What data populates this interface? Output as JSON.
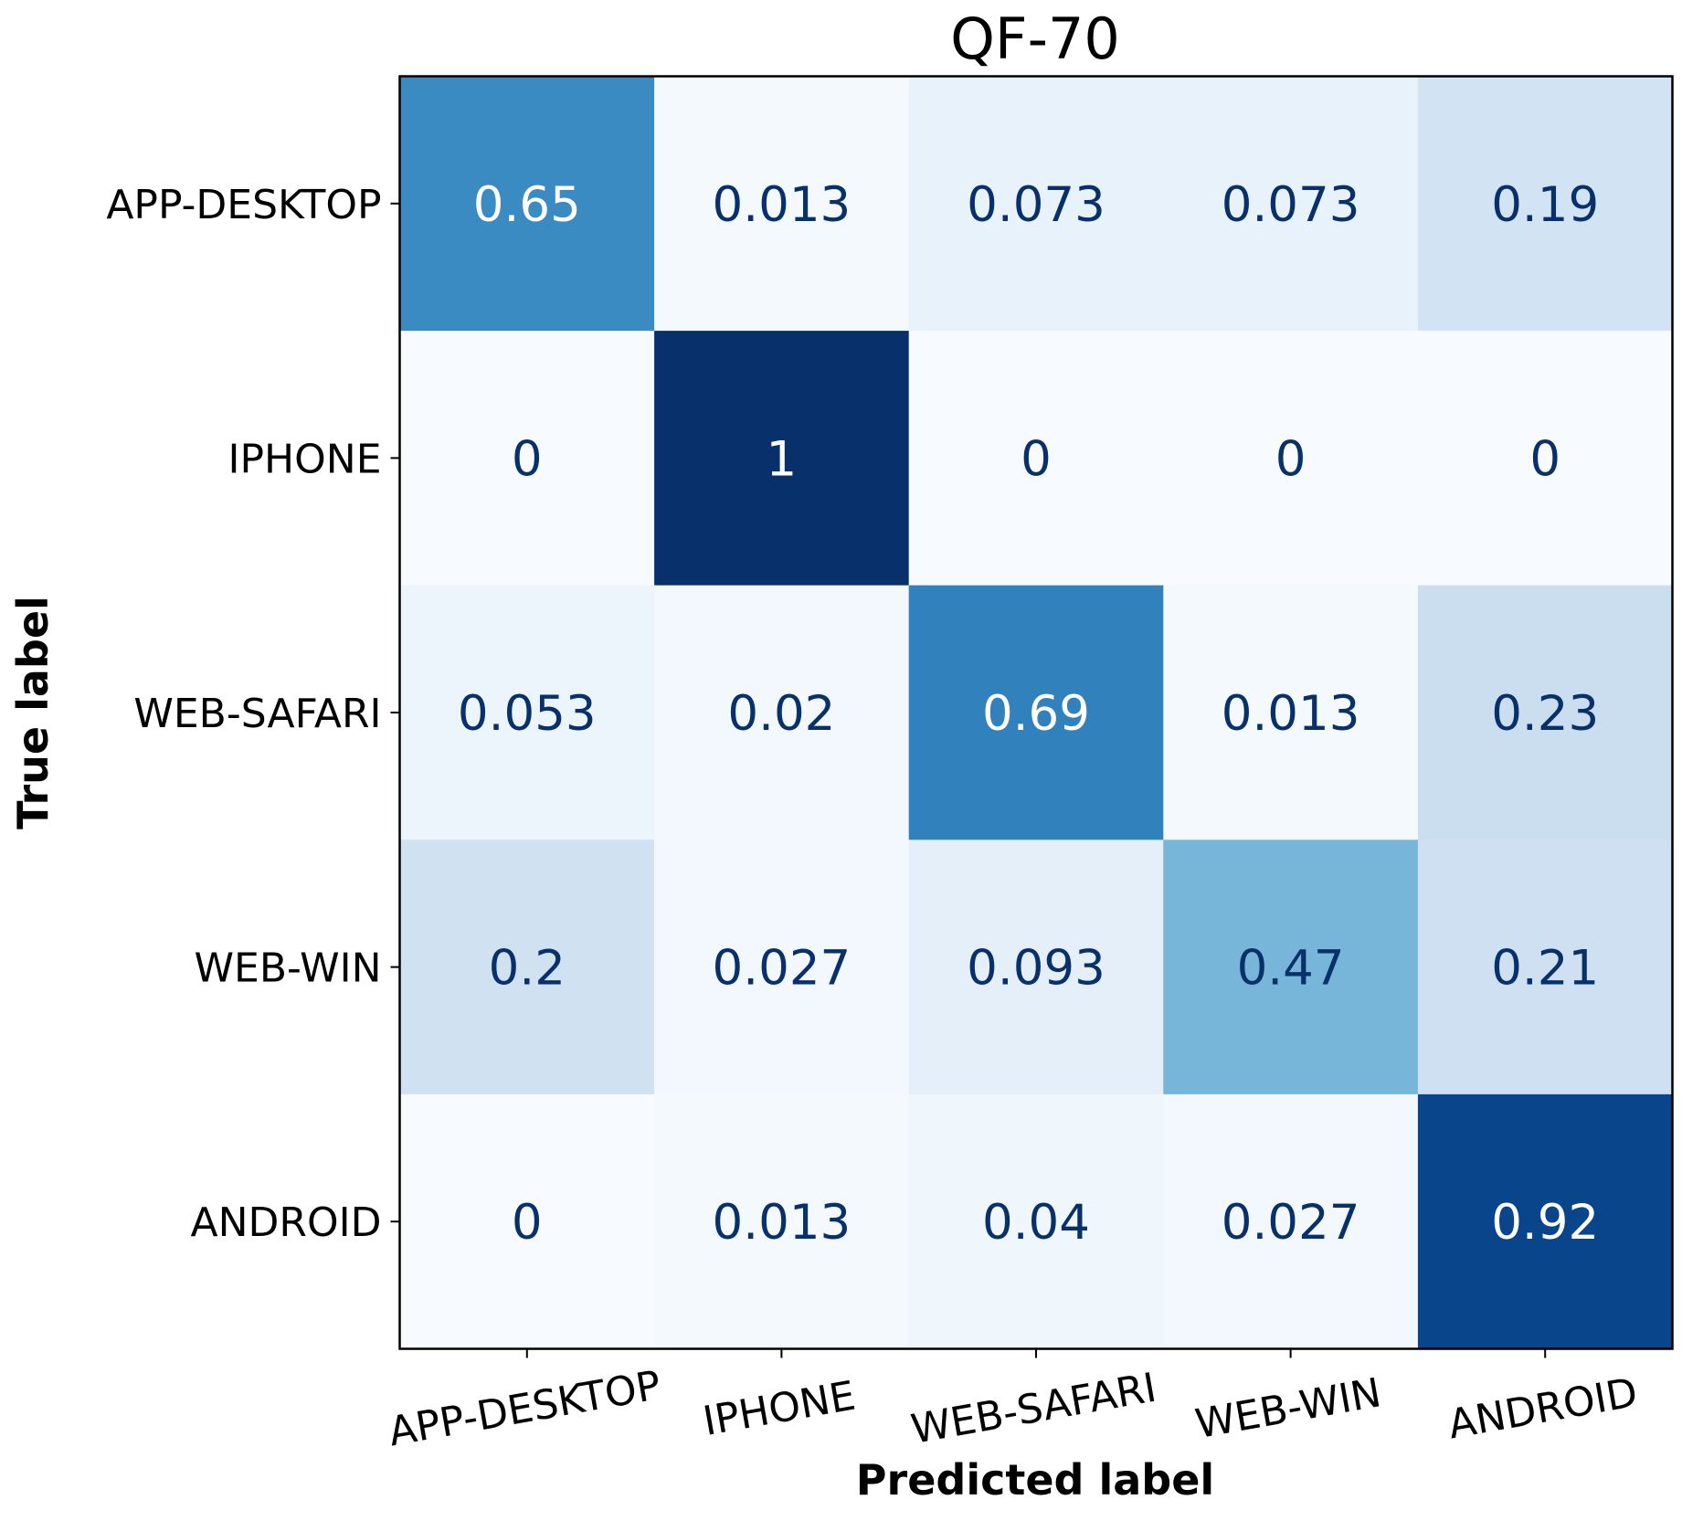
{
  "chart_data": {
    "type": "heatmap",
    "title": "QF-70",
    "xlabel": "Predicted label",
    "ylabel": "True label",
    "x_categories": [
      "APP-DESKTOP",
      "IPHONE",
      "WEB-SAFARI",
      "WEB-WIN",
      "ANDROID"
    ],
    "y_categories": [
      "APP-DESKTOP",
      "IPHONE",
      "WEB-SAFARI",
      "WEB-WIN",
      "ANDROID"
    ],
    "values": [
      [
        0.65,
        0.013,
        0.073,
        0.073,
        0.19
      ],
      [
        0,
        1,
        0,
        0,
        0
      ],
      [
        0.053,
        0.02,
        0.69,
        0.013,
        0.23
      ],
      [
        0.2,
        0.027,
        0.093,
        0.47,
        0.21
      ],
      [
        0,
        0.013,
        0.04,
        0.027,
        0.92
      ]
    ],
    "value_labels": [
      [
        "0.65",
        "0.013",
        "0.073",
        "0.073",
        "0.19"
      ],
      [
        "0",
        "1",
        "0",
        "0",
        "0"
      ],
      [
        "0.053",
        "0.02",
        "0.69",
        "0.013",
        "0.23"
      ],
      [
        "0.2",
        "0.027",
        "0.093",
        "0.47",
        "0.21"
      ],
      [
        "0",
        "0.013",
        "0.04",
        "0.027",
        "0.92"
      ]
    ],
    "colormap": "Blues",
    "vlim": [
      0,
      1
    ],
    "colorbar": false,
    "grid": false
  },
  "colors": {
    "text_dark": "#08306b",
    "text_light": "#ffffff",
    "frame": "#000000"
  }
}
